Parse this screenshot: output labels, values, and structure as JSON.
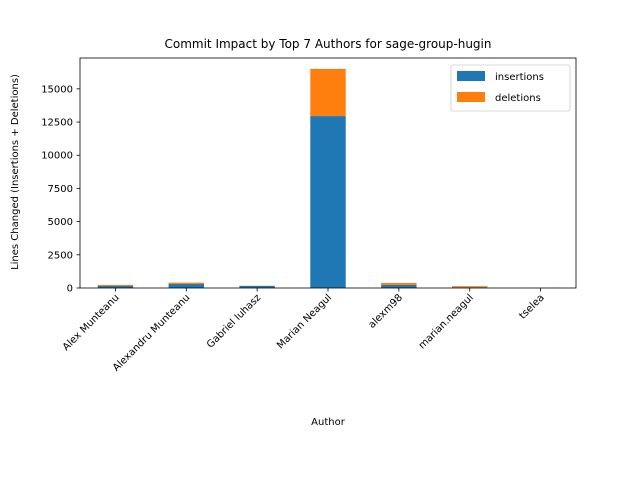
{
  "chart_data": {
    "type": "bar",
    "stacked": true,
    "title": "Commit Impact by Top 7 Authors for sage-group-hugin",
    "xlabel": "Author",
    "ylabel": "Lines Changed (Insertions + Deletions)",
    "categories": [
      "Alex Munteanu",
      "Alexandru Munteanu",
      "Gabriel Iuhasz",
      "Marian Neagul",
      "alexm98",
      "marian.neagul",
      "tselea"
    ],
    "series": [
      {
        "name": "insertions",
        "color": "#1f77b4",
        "values": [
          150,
          300,
          150,
          12950,
          230,
          60,
          5
        ]
      },
      {
        "name": "deletions",
        "color": "#ff7f0e",
        "values": [
          80,
          100,
          20,
          3550,
          150,
          80,
          5
        ]
      }
    ],
    "ylim": [
      0,
      17325
    ],
    "yticks": [
      0,
      2500,
      5000,
      7500,
      10000,
      12500,
      15000
    ],
    "ytick_labels": [
      "0",
      "2500",
      "5000",
      "7500",
      "10000",
      "12500",
      "15000"
    ],
    "legend_position": "top-right",
    "grid": false
  }
}
